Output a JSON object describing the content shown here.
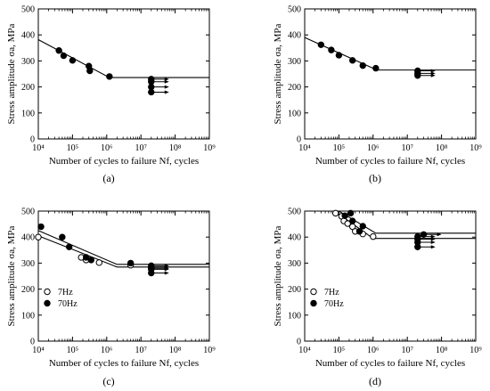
{
  "figure": {
    "ylabel": "Stress amplitude σa, MPa",
    "xlabel": "Number of cycles to failure Nf, cycles"
  },
  "chart_data": [
    {
      "type": "scatter",
      "panel_label": "(a)",
      "xlabel": "Number of cycles to failure Nf, cycles",
      "ylabel": "Stress amplitude σa, MPa",
      "x_scale": "log",
      "xlim": [
        10000,
        1000000000
      ],
      "ylim": [
        0,
        500
      ],
      "x_ticks": [
        "10⁴",
        "10⁵",
        "10⁶",
        "10⁷",
        "10⁸",
        "10⁹"
      ],
      "y_ticks": [
        "0",
        "100",
        "200",
        "300",
        "400",
        "500"
      ],
      "legend": [],
      "series": [
        {
          "marker": "filled",
          "points": [
            [
              40000,
              340
            ],
            [
              55000,
              320
            ],
            [
              100000,
              302
            ],
            [
              300000,
              280
            ],
            [
              320000,
              262
            ],
            [
              1200000,
              240
            ]
          ],
          "runouts": [
            [
              20000000,
              230
            ],
            [
              20000000,
              220
            ],
            [
              20000000,
              200
            ],
            [
              20000000,
              180
            ]
          ],
          "fit": [
            [
              10000,
              382
            ],
            [
              1200000,
              236
            ],
            [
              1000000000,
              236
            ]
          ]
        }
      ]
    },
    {
      "type": "scatter",
      "panel_label": "(b)",
      "xlabel": "Number of cycles to failure Nf, cycles",
      "ylabel": "Stress amplitude σa, MPa",
      "x_scale": "log",
      "xlim": [
        10000,
        1000000000
      ],
      "ylim": [
        0,
        500
      ],
      "x_ticks": [
        "10⁴",
        "10⁵",
        "10⁶",
        "10⁷",
        "10⁸",
        "10⁹"
      ],
      "y_ticks": [
        "0",
        "100",
        "200",
        "300",
        "400",
        "500"
      ],
      "legend": [],
      "series": [
        {
          "marker": "filled",
          "points": [
            [
              30000,
              362
            ],
            [
              60000,
              342
            ],
            [
              100000,
              322
            ],
            [
              250000,
              302
            ],
            [
              500000,
              282
            ],
            [
              1200000,
              272
            ]
          ],
          "runouts": [
            [
              20000000,
              262
            ],
            [
              20000000,
              252
            ],
            [
              20000000,
              244
            ]
          ],
          "fit": [
            [
              10000,
              390
            ],
            [
              1300000,
              265
            ],
            [
              1000000000,
              265
            ]
          ]
        }
      ]
    },
    {
      "type": "scatter",
      "panel_label": "(c)",
      "xlabel": "Number of cycles to failure Nf, cycles",
      "ylabel": "Stress amplitude σa, MPa",
      "x_scale": "log",
      "xlim": [
        10000,
        1000000000
      ],
      "ylim": [
        0,
        500
      ],
      "x_ticks": [
        "10⁴",
        "10⁵",
        "10⁶",
        "10⁷",
        "10⁸",
        "10⁹"
      ],
      "y_ticks": [
        "0",
        "100",
        "200",
        "300",
        "400",
        "500"
      ],
      "legend": [
        "7Hz",
        "70Hz"
      ],
      "series": [
        {
          "name": "7Hz",
          "marker": "open",
          "points": [
            [
              10000,
              400
            ],
            [
              180000,
              322
            ],
            [
              250000,
              312
            ],
            [
              600000,
              302
            ],
            [
              5000000,
              292
            ]
          ],
          "runouts": [
            [
              20000000,
              284
            ],
            [
              20000000,
              276
            ]
          ],
          "fit": [
            [
              10000,
              405
            ],
            [
              2000000,
              285
            ],
            [
              1000000000,
              285
            ]
          ]
        },
        {
          "name": "70Hz",
          "marker": "filled",
          "points": [
            [
              12000,
              440
            ],
            [
              50000,
              400
            ],
            [
              80000,
              362
            ],
            [
              250000,
              322
            ],
            [
              350000,
              312
            ],
            [
              5000000,
              300
            ]
          ],
          "runouts": [
            [
              20000000,
              290
            ],
            [
              20000000,
              280
            ],
            [
              20000000,
              262
            ]
          ],
          "fit": [
            [
              10000,
              425
            ],
            [
              2000000,
              295
            ],
            [
              1000000000,
              295
            ]
          ]
        }
      ]
    },
    {
      "type": "scatter",
      "panel_label": "(d)",
      "xlabel": "Number of cycles to failure Nf, cycles",
      "ylabel": "Stress amplitude σa, MPa",
      "x_scale": "log",
      "xlim": [
        10000,
        1000000000
      ],
      "ylim": [
        0,
        500
      ],
      "x_ticks": [
        "10⁴",
        "10⁵",
        "10⁶",
        "10⁷",
        "10⁸",
        "10⁹"
      ],
      "y_ticks": [
        "0",
        "100",
        "200",
        "300",
        "400",
        "500"
      ],
      "legend": [
        "7Hz",
        "70Hz"
      ],
      "series": [
        {
          "name": "7Hz",
          "marker": "open",
          "points": [
            [
              80000,
              492
            ],
            [
              120000,
              480
            ],
            [
              140000,
              462
            ],
            [
              180000,
              452
            ],
            [
              250000,
              440
            ],
            [
              300000,
              422
            ],
            [
              500000,
              412
            ],
            [
              1000000,
              402
            ]
          ],
          "runouts": [],
          "fit": [
            [
              75000,
              500
            ],
            [
              1000000,
              395
            ],
            [
              1000000000,
              395
            ]
          ]
        },
        {
          "name": "70Hz",
          "marker": "filled",
          "points": [
            [
              150000,
              482
            ],
            [
              220000,
              492
            ],
            [
              250000,
              462
            ],
            [
              400000,
              422
            ],
            [
              500000,
              442
            ]
          ],
          "runouts": [
            [
              20000000,
              402
            ],
            [
              20000000,
              392
            ],
            [
              20000000,
              380
            ],
            [
              20000000,
              362
            ],
            [
              30000000,
              410
            ]
          ],
          "fit": [
            [
              100000,
              500
            ],
            [
              1200000,
              415
            ],
            [
              1000000000,
              415
            ]
          ]
        }
      ]
    }
  ]
}
